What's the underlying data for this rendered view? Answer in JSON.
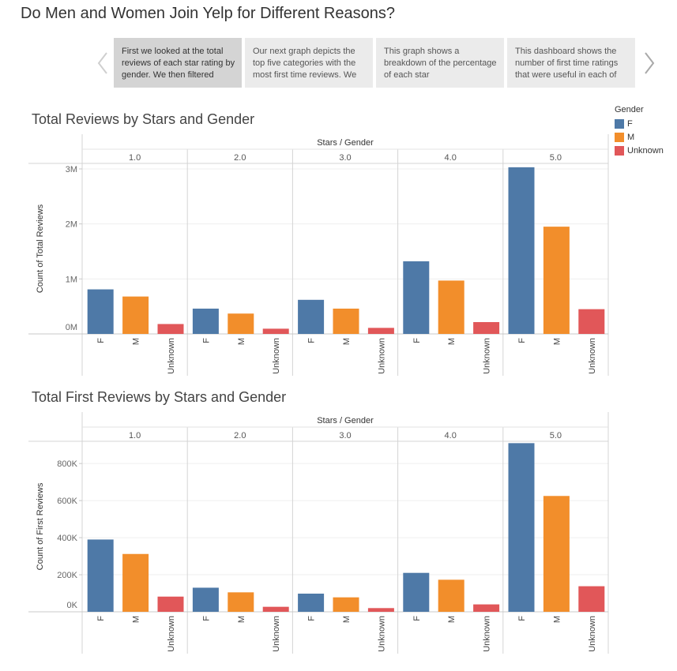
{
  "page_title": "Do Men and Women Join Yelp for Different Reasons?",
  "story_points": [
    "First we looked at  the total reviews of each star rating by gender. We then filtered",
    "Our next graph depicts the top five categories with the most first time reviews. We",
    "This graph shows a breakdown of the percentage of each star",
    "This dashboard shows the number of first time ratings that were useful in each of"
  ],
  "legend": {
    "title": "Gender",
    "items": [
      {
        "label": "F",
        "color": "#4e79a7"
      },
      {
        "label": "M",
        "color": "#f28e2b"
      },
      {
        "label": "Unknown",
        "color": "#e15759"
      }
    ]
  },
  "chart_data": [
    {
      "type": "bar",
      "title": "Total Reviews by Stars and Gender",
      "column_header": "Stars / Gender",
      "ylabel": "Count of Total Reviews",
      "panels": [
        "1.0",
        "2.0",
        "3.0",
        "4.0",
        "5.0"
      ],
      "categories": [
        "F",
        "M",
        "Unknown"
      ],
      "values": [
        [
          810000,
          680000,
          180000
        ],
        [
          460000,
          370000,
          95000
        ],
        [
          620000,
          460000,
          110000
        ],
        [
          1320000,
          970000,
          215000
        ],
        [
          3030000,
          1950000,
          450000
        ]
      ],
      "ylim": [
        0,
        3100000
      ],
      "yticks": [
        0,
        1000000,
        2000000,
        3000000
      ],
      "ytick_labels": [
        "0M",
        "1M",
        "2M",
        "3M"
      ]
    },
    {
      "type": "bar",
      "title": "Total First Reviews by Stars and Gender",
      "column_header": "Stars / Gender",
      "ylabel": "Count of First Reviews",
      "panels": [
        "1.0",
        "2.0",
        "3.0",
        "4.0",
        "5.0"
      ],
      "categories": [
        "F",
        "M",
        "Unknown"
      ],
      "values": [
        [
          390000,
          312000,
          82000
        ],
        [
          130000,
          105000,
          27000
        ],
        [
          98000,
          78000,
          20000
        ],
        [
          210000,
          173000,
          40000
        ],
        [
          910000,
          625000,
          138000
        ]
      ],
      "ylim": [
        0,
        920000
      ],
      "yticks": [
        0,
        200000,
        400000,
        600000,
        800000
      ],
      "ytick_labels": [
        "0K",
        "200K",
        "400K",
        "600K",
        "800K"
      ]
    }
  ]
}
